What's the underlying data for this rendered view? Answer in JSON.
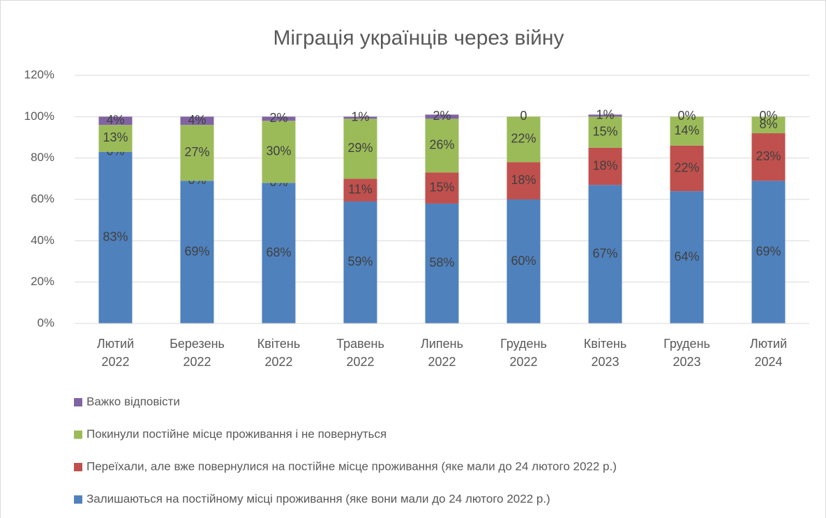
{
  "chart_data": {
    "type": "stacked_bar",
    "title": "Міграція українців через війну",
    "categories": [
      "Лютий 2022",
      "Березень 2022",
      "Квітень 2022",
      "Травень 2022",
      "Липень 2022",
      "Грудень 2022",
      "Квітень 2023",
      "Грудень 2023",
      "Лютий 2024"
    ],
    "series": [
      {
        "name": "Залишаються на постійному місці проживання (яке вони мали до 24 лютого 2022 р.)",
        "color": "#4f81bd",
        "values": [
          83,
          69,
          68,
          59,
          58,
          60,
          67,
          64,
          69
        ],
        "value_labels": [
          "83%",
          "69%",
          "68%",
          "59%",
          "58%",
          "60%",
          "67%",
          "64%",
          "69%"
        ]
      },
      {
        "name": "Переїхали, але вже повернулися на постійне місце проживання (яке мали до 24 лютого 2022 р.)",
        "color": "#c0504d",
        "values": [
          0,
          0,
          0,
          11,
          15,
          18,
          18,
          22,
          23
        ],
        "value_labels": [
          "0%",
          "0%",
          "0%",
          "11%",
          "15%",
          "18%",
          "18%",
          "22%",
          "23%"
        ]
      },
      {
        "name": "Покинули постійне місце проживання і не повернуться",
        "color": "#9bbb59",
        "values": [
          13,
          27,
          30,
          29,
          26,
          22,
          15,
          14,
          8
        ],
        "value_labels": [
          "13%",
          "27%",
          "30%",
          "29%",
          "26%",
          "22%",
          "15%",
          "14%",
          "8%"
        ]
      },
      {
        "name": "Важко відповісти",
        "color": "#8064a2",
        "values": [
          4,
          4,
          2,
          1,
          2,
          0,
          1,
          0,
          0
        ],
        "value_labels": [
          "4%",
          "4%",
          "2%",
          "1%",
          "2%",
          "0",
          "1%",
          "0%",
          "0%"
        ]
      }
    ],
    "ylim": [
      0,
      120
    ],
    "yticks": [
      {
        "value": 0,
        "label": "0%"
      },
      {
        "value": 20,
        "label": "20%"
      },
      {
        "value": 40,
        "label": "40%"
      },
      {
        "value": 60,
        "label": "60%"
      },
      {
        "value": 80,
        "label": "80%"
      },
      {
        "value": 100,
        "label": "100%"
      },
      {
        "value": 120,
        "label": "120%"
      }
    ],
    "grid": true,
    "legend": "bottom"
  }
}
